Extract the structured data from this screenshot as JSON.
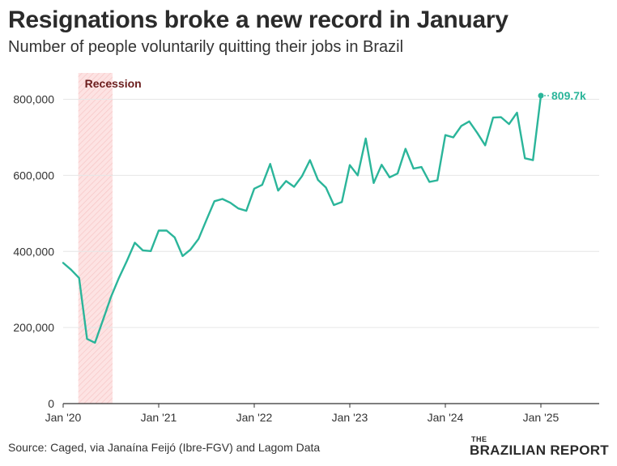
{
  "title": "Resignations broke a new record in January",
  "subtitle": "Number of people voluntarily quitting their jobs in Brazil",
  "source": "Source: Caged, via Janaína Feijó (Ibre-FGV) and Lagom Data",
  "brand": {
    "prefix": "THE",
    "name": "BRAZILIAN REPORT"
  },
  "colors": {
    "line": "#2bb59a",
    "recession_fill": "#fde3e3",
    "recession_label": "#6b1d1d",
    "grid": "#e6e6e6",
    "axis": "#333333"
  },
  "chart_data": {
    "type": "line",
    "title": "Resignations broke a new record in January",
    "subtitle": "Number of people voluntarily quitting their jobs in Brazil",
    "xlabel": "",
    "ylabel": "",
    "ylim": [
      0,
      880000
    ],
    "yticks": [
      0,
      200000,
      400000,
      600000,
      800000
    ],
    "ytick_labels": [
      "0",
      "200,000",
      "400,000",
      "600,000",
      "800,000"
    ],
    "xlim": [
      "2020-01",
      "2025-01"
    ],
    "xtick_labels": [
      "Jan '20",
      "Jan '21",
      "Jan '22",
      "Jan '23",
      "Jan '24",
      "Jan '25"
    ],
    "grid": true,
    "shaded_region": {
      "label": "Recession",
      "start": "2020-03",
      "end": "2020-07"
    },
    "end_label": "809.7k",
    "series": [
      {
        "x": [
          "2020-01",
          "2020-02",
          "2020-03",
          "2020-04",
          "2020-05",
          "2020-06",
          "2020-07",
          "2020-08",
          "2020-09",
          "2020-10",
          "2020-11",
          "2020-12",
          "2021-01",
          "2021-02",
          "2021-03",
          "2021-04",
          "2021-05",
          "2021-06",
          "2021-07",
          "2021-08",
          "2021-09",
          "2021-10",
          "2021-11",
          "2021-12",
          "2022-01",
          "2022-02",
          "2022-03",
          "2022-04",
          "2022-05",
          "2022-06",
          "2022-07",
          "2022-08",
          "2022-09",
          "2022-10",
          "2022-11",
          "2022-12",
          "2023-01",
          "2023-02",
          "2023-03",
          "2023-04",
          "2023-05",
          "2023-06",
          "2023-07",
          "2023-08",
          "2023-09",
          "2023-10",
          "2023-11",
          "2023-12",
          "2024-01",
          "2024-02",
          "2024-03",
          "2024-04",
          "2024-05",
          "2024-06",
          "2024-07",
          "2024-08",
          "2024-09",
          "2024-10",
          "2024-11",
          "2024-12",
          "2025-01"
        ],
        "values": [
          370000,
          352000,
          330000,
          170000,
          160000,
          220000,
          280000,
          330000,
          375000,
          423000,
          403000,
          401000,
          455000,
          455000,
          437000,
          388000,
          405000,
          433000,
          483000,
          532000,
          538000,
          528000,
          513000,
          507000,
          565000,
          575000,
          630000,
          560000,
          585000,
          570000,
          598000,
          640000,
          588000,
          568000,
          522000,
          530000,
          627000,
          600000,
          697000,
          580000,
          628000,
          595000,
          605000,
          670000,
          618000,
          622000,
          583000,
          587000,
          706000,
          700000,
          730000,
          742000,
          712000,
          679000,
          752000,
          753000,
          735000,
          765000,
          645000,
          640000,
          809700
        ]
      }
    ]
  }
}
